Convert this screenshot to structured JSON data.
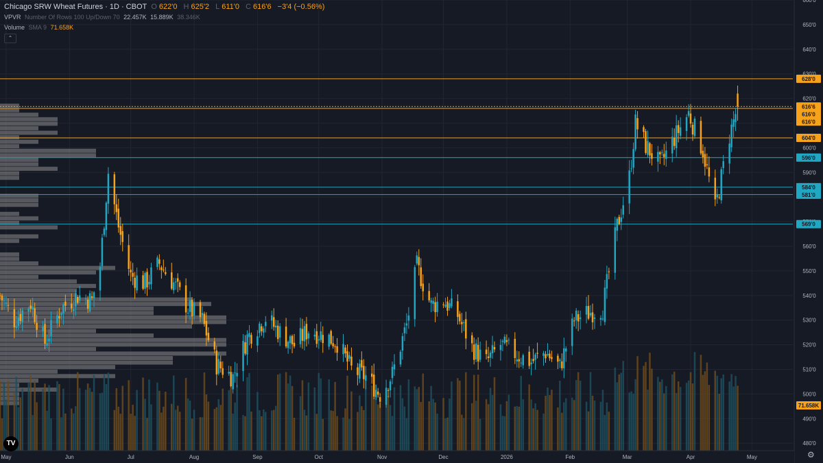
{
  "legend": {
    "title": "Chicago SRW Wheat Futures · 1D · CBOT",
    "o_label": "O",
    "o_val": "622'0",
    "h_label": "H",
    "h_val": "625'2",
    "l_label": "L",
    "l_val": "611'0",
    "c_label": "C",
    "c_val": "616'6",
    "change": "−3'4 (−0.56%)",
    "vpvr_label": "VPVR",
    "vpvr_params": "Number Of Rows 100 Up/Down 70",
    "vpvr_val1": "22.457K",
    "vpvr_val2": "15.889K",
    "vpvr_val3": "38.346K",
    "vol_label": "Volume",
    "vol_params": "SMA 9",
    "vol_val": "71.658K"
  },
  "icons": {
    "collapse": "chevron-up-icon",
    "logo": "tradingview-logo-icon",
    "settings": "gear-icon"
  },
  "ui": {
    "collapse_glyph": "⌃",
    "logo_text": "TV",
    "gear_glyph": "⚙"
  },
  "colors": {
    "up": "#22a7c2",
    "down": "#f7a21b",
    "background": "#161a25",
    "grid": "#222632",
    "axis_text": "#b2b5be",
    "vpvr": "#8c8c8c"
  },
  "chart_data": {
    "type": "candlestick",
    "ylim": [
      477,
      660
    ],
    "y_ticks": [
      {
        "v": 480,
        "t": "480'0"
      },
      {
        "v": 490,
        "t": "490'0"
      },
      {
        "v": 500,
        "t": "500'0"
      },
      {
        "v": 510,
        "t": "510'0"
      },
      {
        "v": 520,
        "t": "520'0"
      },
      {
        "v": 530,
        "t": "530'0"
      },
      {
        "v": 540,
        "t": "540'0"
      },
      {
        "v": 550,
        "t": "550'0"
      },
      {
        "v": 560,
        "t": "560'0"
      },
      {
        "v": 570,
        "t": "570'0"
      },
      {
        "v": 580,
        "t": "580'0"
      },
      {
        "v": 590,
        "t": "590'0"
      },
      {
        "v": 600,
        "t": "600'0"
      },
      {
        "v": 610,
        "t": "610'0"
      },
      {
        "v": 620,
        "t": "620'0"
      },
      {
        "v": 630,
        "t": "630'0"
      },
      {
        "v": 640,
        "t": "640'0"
      },
      {
        "v": 650,
        "t": "650'0"
      },
      {
        "v": 660,
        "t": "660'0"
      }
    ],
    "x_labels": [
      {
        "label": "May",
        "date": "2025-05-01"
      },
      {
        "label": "Jun",
        "date": "2025-06-01"
      },
      {
        "label": "Jul",
        "date": "2025-07-01"
      },
      {
        "label": "Aug",
        "date": "2025-08-01"
      },
      {
        "label": "Sep",
        "date": "2025-09-01"
      },
      {
        "label": "Oct",
        "date": "2025-10-01"
      },
      {
        "label": "Nov",
        "date": "2025-11-01"
      },
      {
        "label": "Dec",
        "date": "2025-12-01"
      },
      {
        "label": "2026",
        "date": "2026-01-01"
      },
      {
        "label": "Feb",
        "date": "2026-02-01"
      },
      {
        "label": "Mar",
        "date": "2026-03-01"
      },
      {
        "label": "Apr",
        "date": "2026-04-01"
      },
      {
        "label": "May",
        "date": "2026-05-01"
      }
    ],
    "x_range": [
      "2025-04-28",
      "2026-05-21"
    ],
    "levels": [
      {
        "price": 628,
        "label": "628'0",
        "color": "#f7a21b"
      },
      {
        "price": 616.75,
        "label": "616'6",
        "color": "#f7a21b",
        "style": "dotted"
      },
      {
        "price": 616,
        "label": "616'0",
        "color": "#f7a21b"
      },
      {
        "price": 616,
        "label": "616'0",
        "color": "#f7a21b"
      },
      {
        "price": 604,
        "label": "604'0",
        "color": "#f7a21b"
      },
      {
        "price": 596,
        "label": "596'0",
        "color": "#22a7c2"
      },
      {
        "price": 584,
        "label": "584'0",
        "color": "#22a7c2"
      },
      {
        "price": 581,
        "label": "581'0",
        "color": "#22a7c2"
      },
      {
        "price": 569,
        "label": "569'0",
        "color": "#22a7c2"
      }
    ],
    "volume_sma": {
      "value": 71.658,
      "label": "71.658K"
    },
    "key_points": [
      {
        "date": "2025-04-28",
        "close": 540
      },
      {
        "date": "2025-05-05",
        "close": 530
      },
      {
        "date": "2025-05-13",
        "close": 537
      },
      {
        "date": "2025-05-20",
        "close": 521
      },
      {
        "date": "2025-05-28",
        "close": 535
      },
      {
        "date": "2025-06-05",
        "close": 540
      },
      {
        "date": "2025-06-12",
        "close": 538
      },
      {
        "date": "2025-06-16",
        "close": 552
      },
      {
        "date": "2025-06-20",
        "close": 590
      },
      {
        "date": "2025-06-25",
        "close": 568
      },
      {
        "date": "2025-07-01",
        "close": 548
      },
      {
        "date": "2025-07-08",
        "close": 545
      },
      {
        "date": "2025-07-15",
        "close": 553
      },
      {
        "date": "2025-07-22",
        "close": 545
      },
      {
        "date": "2025-07-29",
        "close": 535
      },
      {
        "date": "2025-08-05",
        "close": 530
      },
      {
        "date": "2025-08-12",
        "close": 512
      },
      {
        "date": "2025-08-20",
        "close": 507
      },
      {
        "date": "2025-08-27",
        "close": 523
      },
      {
        "date": "2025-09-05",
        "close": 531
      },
      {
        "date": "2025-09-12",
        "close": 525
      },
      {
        "date": "2025-09-19",
        "close": 520
      },
      {
        "date": "2025-09-26",
        "close": 526
      },
      {
        "date": "2025-10-03",
        "close": 524
      },
      {
        "date": "2025-10-10",
        "close": 521
      },
      {
        "date": "2025-10-17",
        "close": 510
      },
      {
        "date": "2025-10-24",
        "close": 507
      },
      {
        "date": "2025-10-31",
        "close": 500
      },
      {
        "date": "2025-11-06",
        "close": 508
      },
      {
        "date": "2025-11-13",
        "close": 528
      },
      {
        "date": "2025-11-18",
        "close": 552
      },
      {
        "date": "2025-11-25",
        "close": 536
      },
      {
        "date": "2025-12-01",
        "close": 538
      },
      {
        "date": "2025-12-08",
        "close": 532
      },
      {
        "date": "2025-12-15",
        "close": 519
      },
      {
        "date": "2025-12-22",
        "close": 513
      },
      {
        "date": "2025-12-29",
        "close": 520
      },
      {
        "date": "2026-01-06",
        "close": 516
      },
      {
        "date": "2026-01-13",
        "close": 513
      },
      {
        "date": "2026-01-20",
        "close": 517
      },
      {
        "date": "2026-01-27",
        "close": 511
      },
      {
        "date": "2026-02-03",
        "close": 530
      },
      {
        "date": "2026-02-10",
        "close": 533
      },
      {
        "date": "2026-02-17",
        "close": 535
      },
      {
        "date": "2026-02-24",
        "close": 568
      },
      {
        "date": "2026-03-02",
        "close": 588
      },
      {
        "date": "2026-03-05",
        "close": 610
      },
      {
        "date": "2026-03-10",
        "close": 601
      },
      {
        "date": "2026-03-17",
        "close": 593
      },
      {
        "date": "2026-03-24",
        "close": 604
      },
      {
        "date": "2026-03-31",
        "close": 614
      },
      {
        "date": "2026-04-07",
        "close": 599
      },
      {
        "date": "2026-04-13",
        "close": 575
      },
      {
        "date": "2026-04-20",
        "close": 605
      },
      {
        "date": "2026-04-24",
        "close": 616.75
      }
    ]
  }
}
